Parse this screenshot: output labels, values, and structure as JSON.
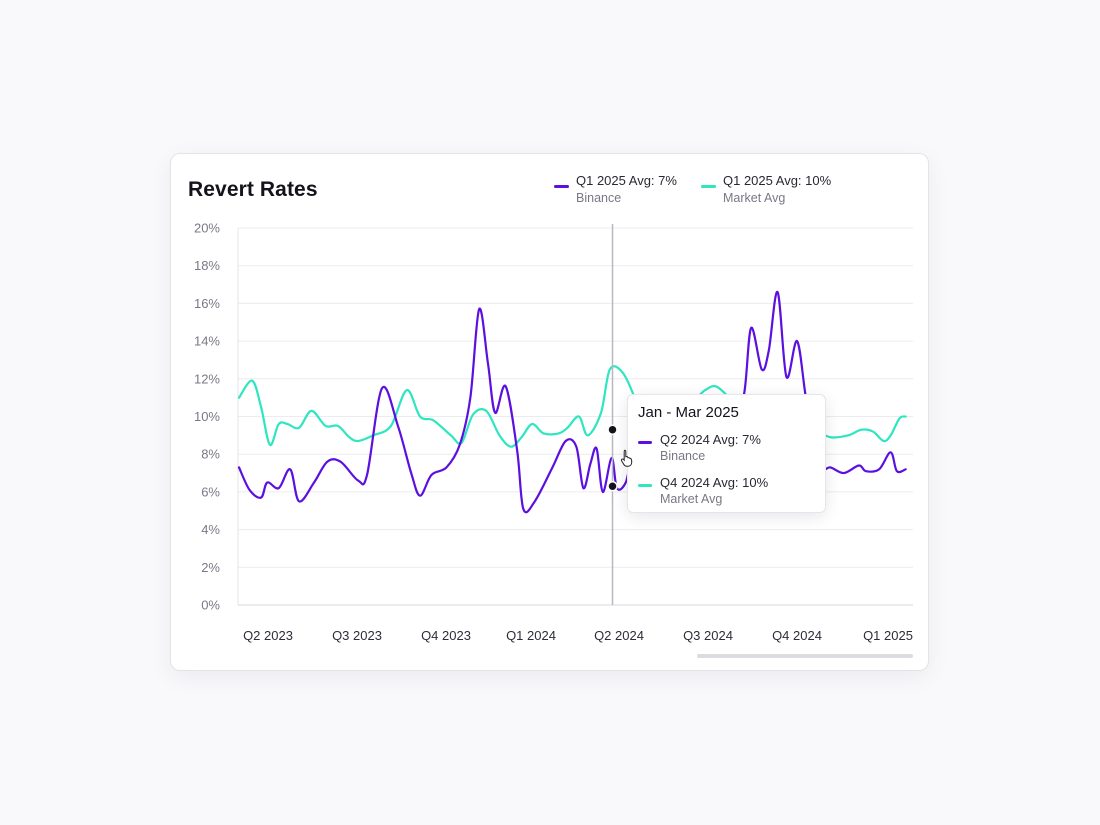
{
  "chart_data": {
    "type": "line",
    "title": "Revert Rates",
    "x_ticks": [
      "Q2 2023",
      "Q3 2023",
      "Q4 2023",
      "Q1 2024",
      "Q2 2024",
      "Q3 2024",
      "Q4 2024",
      "Q1 2025"
    ],
    "y_ticks": [
      "0%",
      "2%",
      "4%",
      "6%",
      "8%",
      "10%",
      "12%",
      "14%",
      "16%",
      "18%",
      "20%"
    ],
    "ylim": [
      0,
      20
    ],
    "y_unit": "%",
    "grid": true,
    "legend_position": "top-right",
    "series": [
      {
        "name": "Binance",
        "legend_label": "Q1 2025 Avg: 7%",
        "color": "#5b10e0",
        "points": [
          [
            0.0,
            7.3
          ],
          [
            0.12,
            6.1
          ],
          [
            0.25,
            5.7
          ],
          [
            0.32,
            6.5
          ],
          [
            0.45,
            6.2
          ],
          [
            0.58,
            7.2
          ],
          [
            0.68,
            5.5
          ],
          [
            0.85,
            6.5
          ],
          [
            1.0,
            7.6
          ],
          [
            1.15,
            7.6
          ],
          [
            1.35,
            6.6
          ],
          [
            1.45,
            6.9
          ],
          [
            1.62,
            11.5
          ],
          [
            1.8,
            9.5
          ],
          [
            1.95,
            7.0
          ],
          [
            2.05,
            5.8
          ],
          [
            2.18,
            6.9
          ],
          [
            2.35,
            7.3
          ],
          [
            2.5,
            8.5
          ],
          [
            2.62,
            11.0
          ],
          [
            2.72,
            15.7
          ],
          [
            2.82,
            12.8
          ],
          [
            2.9,
            10.2
          ],
          [
            3.02,
            11.6
          ],
          [
            3.15,
            8.2
          ],
          [
            3.22,
            5.1
          ],
          [
            3.35,
            5.5
          ],
          [
            3.55,
            7.3
          ],
          [
            3.7,
            8.7
          ],
          [
            3.82,
            8.4
          ],
          [
            3.9,
            6.2
          ],
          [
            3.98,
            7.5
          ],
          [
            4.05,
            8.3
          ],
          [
            4.12,
            6.0
          ],
          [
            4.22,
            7.8
          ],
          [
            4.28,
            6.2
          ],
          [
            4.38,
            6.5
          ],
          [
            4.46,
            7.9
          ],
          [
            4.55,
            6.1
          ],
          [
            4.65,
            7.8
          ],
          [
            4.75,
            8.7
          ],
          [
            4.85,
            5.2
          ],
          [
            4.92,
            6.9
          ],
          [
            5.05,
            6.6
          ],
          [
            5.2,
            7.3
          ],
          [
            5.32,
            8.2
          ],
          [
            5.42,
            9.0
          ],
          [
            5.5,
            10.4
          ],
          [
            5.6,
            10.2
          ],
          [
            5.72,
            11.2
          ],
          [
            5.8,
            14.7
          ],
          [
            5.92,
            12.5
          ],
          [
            6.0,
            13.5
          ],
          [
            6.1,
            16.6
          ],
          [
            6.2,
            12.1
          ],
          [
            6.32,
            14.0
          ],
          [
            6.42,
            11.0
          ],
          [
            6.55,
            7.4
          ],
          [
            6.7,
            7.3
          ],
          [
            6.85,
            7.0
          ],
          [
            7.02,
            7.4
          ],
          [
            7.1,
            7.1
          ],
          [
            7.25,
            7.2
          ],
          [
            7.38,
            8.1
          ],
          [
            7.45,
            7.1
          ],
          [
            7.55,
            7.2
          ]
        ]
      },
      {
        "name": "Market Avg",
        "legend_label": "Q1 2025 Avg: 10%",
        "color": "#2ee6bf",
        "points": [
          [
            0.0,
            11.0
          ],
          [
            0.15,
            11.9
          ],
          [
            0.25,
            10.5
          ],
          [
            0.35,
            8.5
          ],
          [
            0.45,
            9.6
          ],
          [
            0.55,
            9.6
          ],
          [
            0.68,
            9.4
          ],
          [
            0.82,
            10.3
          ],
          [
            0.98,
            9.5
          ],
          [
            1.12,
            9.5
          ],
          [
            1.25,
            8.9
          ],
          [
            1.35,
            8.7
          ],
          [
            1.52,
            9.0
          ],
          [
            1.72,
            9.5
          ],
          [
            1.9,
            11.4
          ],
          [
            2.05,
            10.0
          ],
          [
            2.2,
            9.8
          ],
          [
            2.4,
            9.0
          ],
          [
            2.52,
            8.6
          ],
          [
            2.65,
            10.1
          ],
          [
            2.8,
            10.3
          ],
          [
            2.95,
            9.0
          ],
          [
            3.08,
            8.4
          ],
          [
            3.2,
            8.9
          ],
          [
            3.32,
            9.6
          ],
          [
            3.45,
            9.1
          ],
          [
            3.62,
            9.1
          ],
          [
            3.72,
            9.4
          ],
          [
            3.85,
            10.0
          ],
          [
            3.95,
            9.0
          ],
          [
            4.1,
            10.2
          ],
          [
            4.2,
            12.5
          ],
          [
            4.35,
            12.3
          ],
          [
            4.5,
            10.8
          ],
          [
            4.62,
            9.6
          ],
          [
            4.72,
            9.0
          ],
          [
            4.82,
            9.5
          ],
          [
            4.95,
            10.6
          ],
          [
            5.08,
            10.9
          ],
          [
            5.18,
            11.0
          ],
          [
            5.28,
            11.4
          ],
          [
            5.4,
            11.6
          ],
          [
            5.55,
            11.0
          ],
          [
            5.7,
            10.2
          ],
          [
            5.9,
            9.5
          ],
          [
            6.1,
            9.3
          ],
          [
            6.3,
            9.4
          ],
          [
            6.5,
            9.3
          ],
          [
            6.7,
            8.9
          ],
          [
            6.9,
            9.0
          ],
          [
            7.05,
            9.3
          ],
          [
            7.18,
            9.2
          ],
          [
            7.3,
            8.7
          ],
          [
            7.38,
            9.0
          ],
          [
            7.48,
            9.9
          ],
          [
            7.55,
            10.0
          ]
        ]
      }
    ],
    "hover_index_x": 4.23,
    "hover_values": [
      6.3,
      9.3
    ]
  },
  "legend": [
    {
      "main": "Q1 2025 Avg: 7%",
      "sub": "Binance",
      "color": "#5b10e0"
    },
    {
      "main": "Q1 2025 Avg: 10%",
      "sub": "Market Avg",
      "color": "#2ee6bf"
    }
  ],
  "tooltip": {
    "title": "Jan - Mar 2025",
    "rows": [
      {
        "main": "Q2 2024 Avg: 7%",
        "sub": "Binance",
        "color": "#5b10e0"
      },
      {
        "main": "Q4 2024 Avg: 10%",
        "sub": "Market Avg",
        "color": "#2ee6bf"
      }
    ]
  },
  "icons": {
    "cursor": "hand-pointer-icon"
  }
}
